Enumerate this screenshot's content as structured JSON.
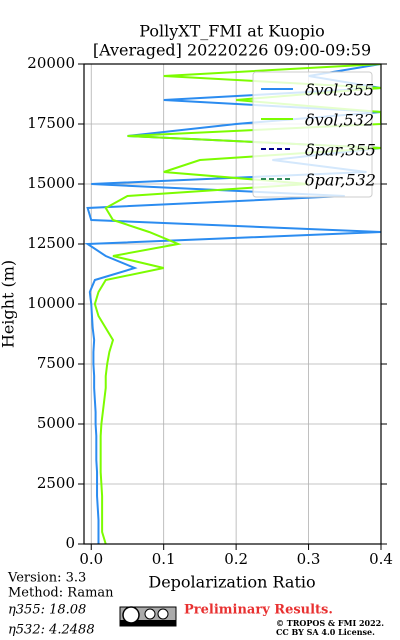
{
  "chart_data": {
    "type": "profile",
    "title": "PollyXT_FMI at Kuopio",
    "subtitle": "[Averaged] 20220226 09:00-09:59",
    "x_label": "Depolarization Ratio",
    "y_label": "Height (m)",
    "xlim": [
      -0.01,
      0.4
    ],
    "xticks": [
      {
        "value": 0,
        "label": "0.0"
      },
      0.1,
      0.2,
      0.3,
      0.4
    ],
    "ylim": [
      0,
      20000
    ],
    "yticks": [
      0,
      2500,
      5000,
      7500,
      10000,
      12500,
      15000,
      17500,
      20000
    ],
    "grid": true,
    "legend": "upper right",
    "heights": [
      0,
      500,
      1000,
      1500,
      2000,
      2500,
      3000,
      3500,
      4000,
      4500,
      5000,
      5500,
      6000,
      6500,
      7000,
      7500,
      8000,
      8500,
      9000,
      9500,
      10000,
      10500,
      11000,
      11500,
      12000,
      12500,
      13000,
      13500,
      14000,
      14500,
      15000,
      15500,
      16000,
      16500,
      17000,
      17500,
      18000,
      18500,
      19000,
      19500,
      20000
    ],
    "series": [
      {
        "name": "δvol,355",
        "color": "#2b8cf0",
        "dash": false,
        "values": [
          0.01,
          0.01,
          0.01,
          0.009,
          0.008,
          0.008,
          0.008,
          0.007,
          0.007,
          0.007,
          0.006,
          0.006,
          0.005,
          0.004,
          0.004,
          0.003,
          0.003,
          0.004,
          0.002,
          0.001,
          0.0,
          -0.002,
          0.005,
          0.06,
          0.02,
          -0.005,
          0.4,
          0.0,
          -0.005,
          0.35,
          0.0,
          0.38,
          0.25,
          0.4,
          0.05,
          0.2,
          0.4,
          0.1,
          0.4,
          0.3,
          0.4
        ]
      },
      {
        "name": "δvol,532",
        "color": "#7cfc00",
        "dash": false,
        "values": [
          0.02,
          0.015,
          0.015,
          0.015,
          0.015,
          0.014,
          0.013,
          0.013,
          0.013,
          0.013,
          0.014,
          0.016,
          0.018,
          0.02,
          0.02,
          0.022,
          0.025,
          0.03,
          0.02,
          0.01,
          0.005,
          0.01,
          0.02,
          0.1,
          0.03,
          0.12,
          0.08,
          0.03,
          0.02,
          0.05,
          0.3,
          0.1,
          0.15,
          0.4,
          0.05,
          0.4,
          0.4,
          0.2,
          0.4,
          0.1,
          0.4
        ]
      },
      {
        "name": "δpar,355",
        "color": "#00008b",
        "dash": true,
        "values": [
          null,
          null,
          null,
          null,
          null,
          null,
          null,
          null,
          null,
          null,
          null,
          null,
          null,
          null,
          null,
          null,
          null,
          null,
          null,
          null,
          null,
          null,
          null,
          null,
          null,
          null,
          null,
          null,
          null,
          null,
          null,
          null,
          null,
          null,
          null,
          null,
          null,
          null,
          null,
          null,
          null
        ]
      },
      {
        "name": "δpar,532",
        "color": "#2e8b57",
        "dash": true,
        "values": [
          null,
          null,
          null,
          null,
          null,
          null,
          null,
          null,
          null,
          null,
          null,
          null,
          null,
          null,
          null,
          null,
          null,
          null,
          null,
          null,
          null,
          null,
          null,
          null,
          null,
          null,
          null,
          null,
          null,
          null,
          null,
          null,
          null,
          null,
          null,
          null,
          null,
          null,
          null,
          null,
          null
        ]
      }
    ],
    "notes": [
      "Version: 3.3",
      "Method: Raman",
      "η355:  18.08",
      "η532: 4.2488"
    ],
    "preliminary": "Preliminary Results.",
    "copyright": [
      "© TROPOS & FMI 2022.",
      "CC BY SA 4.0 License."
    ]
  }
}
